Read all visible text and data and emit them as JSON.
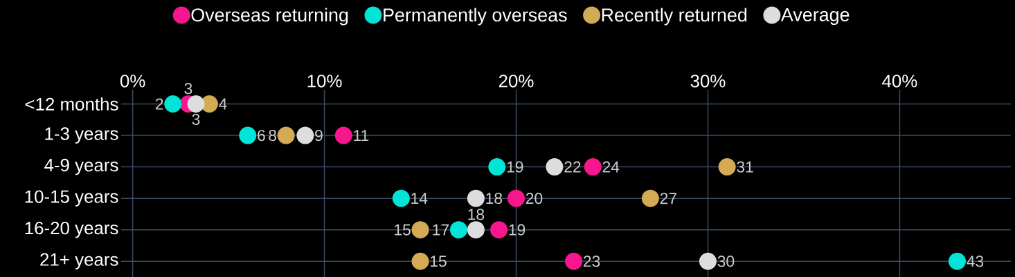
{
  "chart_data": {
    "type": "scatter",
    "orientation": "horizontal",
    "categories": [
      "<12 months",
      "1-3 years",
      "4-9 years",
      "10-15 years",
      "16-20 years",
      "21+ years"
    ],
    "series": [
      {
        "name": "Overseas returning",
        "color": "#f7168d",
        "values": [
          2.9,
          11,
          24,
          20,
          19.1,
          23
        ],
        "value_labels": [
          "3",
          "11",
          "24",
          "20",
          "19",
          "23"
        ]
      },
      {
        "name": "Permanently overseas",
        "color": "#00e5d8",
        "values": [
          2.1,
          6,
          19,
          14,
          17,
          43
        ],
        "value_labels": [
          "2",
          "6",
          "19",
          "14",
          "17",
          "43"
        ]
      },
      {
        "name": "Recently returned",
        "color": "#d4aa55",
        "values": [
          4,
          8,
          31,
          27,
          15,
          15
        ],
        "value_labels": [
          "4",
          "8",
          "31",
          "27",
          "15",
          "15"
        ]
      },
      {
        "name": "Average",
        "color": "#dddddd",
        "values": [
          3.3,
          9,
          22,
          17.9,
          17.9,
          30
        ],
        "value_labels": [
          "3",
          "9",
          "22",
          "18",
          "18",
          "30"
        ]
      }
    ],
    "xlim": [
      -0.6,
      45.8
    ],
    "xticks": [
      {
        "value": 0,
        "label": "0%"
      },
      {
        "value": 10,
        "label": "10%"
      },
      {
        "value": 20,
        "label": "20%"
      },
      {
        "value": 30,
        "label": "30%"
      },
      {
        "value": 40,
        "label": "40%"
      }
    ],
    "grid": true,
    "legend": "top"
  }
}
